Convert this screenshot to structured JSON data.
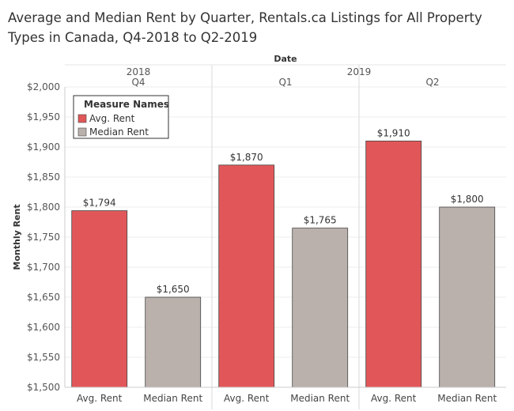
{
  "title": "Average and Median Rent by Quarter, Rentals.ca Listings for All Property Types in Canada, Q4-2018 to Q2-2019",
  "chart_data": {
    "type": "bar",
    "title": "Average and Median Rent by Quarter, Rentals.ca Listings for All Property Types in Canada, Q4-2018 to Q2-2019",
    "xlabel": "Date",
    "ylabel": "Monthly Rent",
    "years": [
      {
        "label": "2018",
        "quarters": [
          0
        ]
      },
      {
        "label": "2019",
        "quarters": [
          1,
          2
        ]
      }
    ],
    "categories": [
      "Q4",
      "Q1",
      "Q2"
    ],
    "series": [
      {
        "name": "Avg. Rent",
        "color": "#e15759",
        "values": [
          1794,
          1870,
          1910
        ],
        "labels": [
          "$1,794",
          "$1,870",
          "$1,910"
        ]
      },
      {
        "name": "Median Rent",
        "color": "#bab0ac",
        "values": [
          1650,
          1765,
          1800
        ],
        "labels": [
          "$1,650",
          "$1,765",
          "$1,800"
        ]
      }
    ],
    "ylim": [
      1500,
      2000
    ],
    "yticks": [
      {
        "value": 1500,
        "label": "$1,500"
      },
      {
        "value": 1550,
        "label": "$1,550"
      },
      {
        "value": 1600,
        "label": "$1,600"
      },
      {
        "value": 1650,
        "label": "$1,650"
      },
      {
        "value": 1700,
        "label": "$1,700"
      },
      {
        "value": 1750,
        "label": "$1,750"
      },
      {
        "value": 1800,
        "label": "$1,800"
      },
      {
        "value": 1850,
        "label": "$1,850"
      },
      {
        "value": 1900,
        "label": "$1,900"
      },
      {
        "value": 1950,
        "label": "$1,950"
      },
      {
        "value": 2000,
        "label": "$2,000"
      }
    ],
    "legend": {
      "title": "Measure Names",
      "position": "top-left",
      "items": [
        {
          "label": "Avg. Rent",
          "color": "#e15759"
        },
        {
          "label": "Median Rent",
          "color": "#bab0ac"
        }
      ]
    },
    "grid": true
  }
}
